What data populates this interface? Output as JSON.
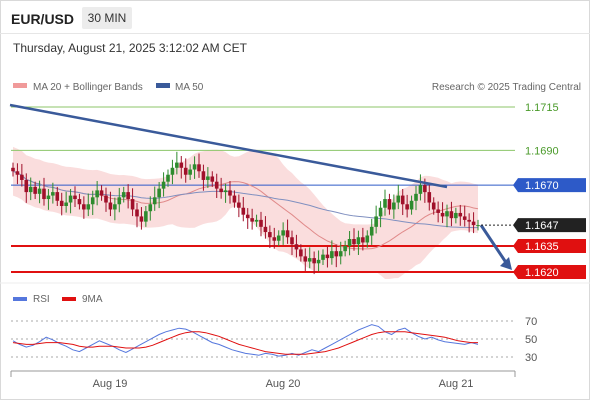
{
  "header": {
    "symbol": "EUR/USD",
    "timeframe": "30 MIN",
    "datetime": "Thursday, August 21, 2025 3:12:02 AM CET"
  },
  "legend": {
    "ma20_label": "MA 20 + Bollinger Bands",
    "ma50_label": "MA 50",
    "copyright": "Research © 2025 Trading Central",
    "rsi_label": "RSI",
    "ma9_label": "9MA"
  },
  "colors": {
    "bullish": "#2e8b2e",
    "bearish": "#a0102a",
    "bollinger": "#f7c6c6",
    "ma20": "#e08a8a",
    "ma50": "#8090c0",
    "trendline": "#3a5a9a",
    "resistance_green": "#8cc66a",
    "pivot_blue": "#2d5ac8",
    "support_red": "#e01010",
    "current_price_bg": "#222222",
    "rsi": "#5577dd",
    "rsi_ma": "#e01010"
  },
  "chart_data": [
    {
      "type": "candlestick",
      "title": "",
      "x_labels": [
        "Aug 19",
        "Aug 20",
        "Aug 21"
      ],
      "ylim": [
        1.161,
        1.173
      ],
      "current_price": 1.1647,
      "levels": [
        {
          "value": 1.1715,
          "kind": "resistance",
          "color": "#8cc66a"
        },
        {
          "value": 1.169,
          "kind": "resistance",
          "color": "#8cc66a"
        },
        {
          "value": 1.167,
          "kind": "pivot",
          "color": "#2d5ac8"
        },
        {
          "value": 1.1635,
          "kind": "support",
          "color": "#e01010"
        },
        {
          "value": 1.162,
          "kind": "support",
          "color": "#e01010"
        }
      ],
      "ohlc_closes": [
        1.1678,
        1.1676,
        1.1673,
        1.1666,
        1.1669,
        1.1665,
        1.1668,
        1.1662,
        1.1664,
        1.1666,
        1.1661,
        1.1658,
        1.166,
        1.1664,
        1.1662,
        1.1659,
        1.1656,
        1.1659,
        1.1663,
        1.1667,
        1.1664,
        1.166,
        1.1656,
        1.1659,
        1.1663,
        1.1666,
        1.1662,
        1.1656,
        1.1652,
        1.1649,
        1.1655,
        1.1659,
        1.1663,
        1.1668,
        1.1672,
        1.1676,
        1.168,
        1.1683,
        1.168,
        1.1676,
        1.1679,
        1.1682,
        1.1678,
        1.1673,
        1.1675,
        1.1672,
        1.1668,
        1.1666,
        1.1667,
        1.1664,
        1.166,
        1.1657,
        1.1653,
        1.1651,
        1.1649,
        1.165,
        1.1646,
        1.1643,
        1.164,
        1.1638,
        1.1641,
        1.1644,
        1.164,
        1.1636,
        1.1633,
        1.1629,
        1.1626,
        1.1628,
        1.1625,
        1.1627,
        1.163,
        1.1628,
        1.1632,
        1.1629,
        1.1632,
        1.1635,
        1.1639,
        1.1636,
        1.164,
        1.1637,
        1.1641,
        1.1646,
        1.1652,
        1.1657,
        1.1662,
        1.1656,
        1.166,
        1.1664,
        1.1659,
        1.1656,
        1.1661,
        1.1665,
        1.167,
        1.1666,
        1.166,
        1.1656,
        1.1654,
        1.1652,
        1.1655,
        1.1651,
        1.1654,
        1.1652,
        1.165,
        1.1649,
        1.1647,
        1.1647
      ],
      "projection": {
        "from": 1.1647,
        "to": 1.162
      }
    },
    {
      "type": "line",
      "title": "",
      "series": [
        {
          "name": "RSI",
          "values": [
            48,
            44,
            41,
            43,
            47,
            52,
            49,
            45,
            42,
            38,
            36,
            40,
            44,
            48,
            45,
            42,
            38,
            35,
            39,
            43,
            47,
            51,
            55,
            58,
            60,
            62,
            61,
            58,
            54,
            50,
            46,
            44,
            41,
            38,
            36,
            34,
            33,
            32,
            34,
            33,
            31,
            32,
            34,
            32,
            35,
            38,
            36,
            40,
            44,
            48,
            52,
            56,
            60,
            63,
            66,
            64,
            58,
            55,
            60,
            62,
            57,
            53,
            50,
            52,
            49,
            47,
            46,
            45,
            44,
            46,
            44
          ]
        },
        {
          "name": "9MA",
          "values": [
            46,
            45,
            44,
            44,
            45,
            46,
            46,
            46,
            45,
            44,
            42,
            41,
            41,
            42,
            42,
            42,
            41,
            40,
            40,
            40,
            41,
            43,
            46,
            49,
            52,
            55,
            57,
            58,
            58,
            57,
            55,
            53,
            50,
            47,
            44,
            42,
            40,
            38,
            36,
            35,
            34,
            33,
            33,
            33,
            33,
            34,
            35,
            36,
            38,
            40,
            43,
            46,
            49,
            52,
            55,
            57,
            58,
            58,
            58,
            58,
            57,
            56,
            55,
            54,
            53,
            52,
            50,
            48,
            47,
            46,
            46
          ]
        }
      ],
      "y_ticks": [
        70,
        50,
        30
      ],
      "ylim": [
        20,
        80
      ]
    }
  ]
}
